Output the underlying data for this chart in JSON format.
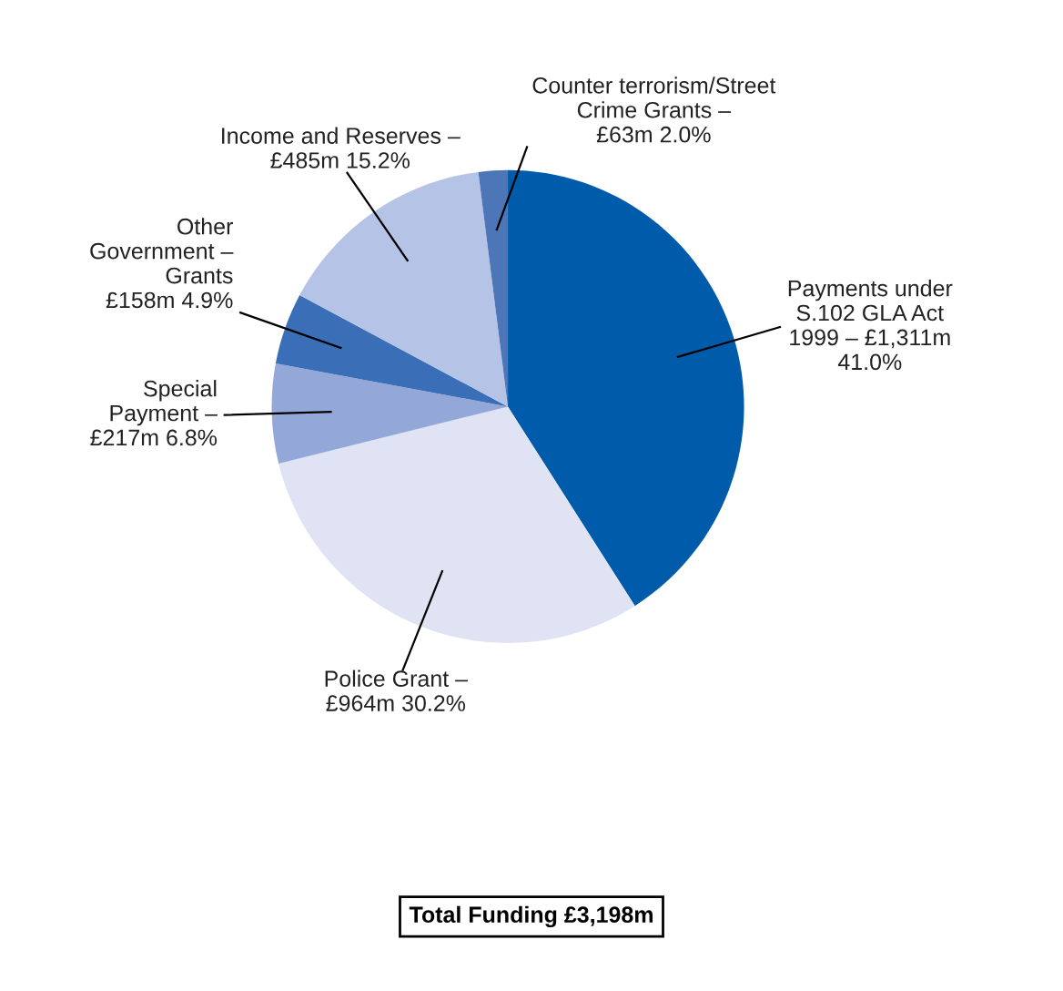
{
  "chart_data": {
    "type": "pie",
    "categories": [
      "Payments under\nS.102 GLA Act\n1999 – £1,311m\n41.0%",
      "Police Grant –\n£964m 30.2%",
      "Special\nPayment –\n£217m 6.8%",
      "Other\nGovernment –\nGrants\n£158m 4.9%",
      "Income and Reserves –\n£485m 15.2%",
      "Counter terrorism/Street\nCrime Grants –\n£63m 2.0%"
    ],
    "values": [
      41.0,
      30.2,
      6.8,
      4.9,
      15.2,
      2.0
    ],
    "colors": [
      "#005bab",
      "#dfe3f3",
      "#93a8d8",
      "#3a6fb8",
      "#b4c3e6",
      "#4d76b8"
    ],
    "annotations": [
      "Total Funding £3,198m"
    ]
  }
}
